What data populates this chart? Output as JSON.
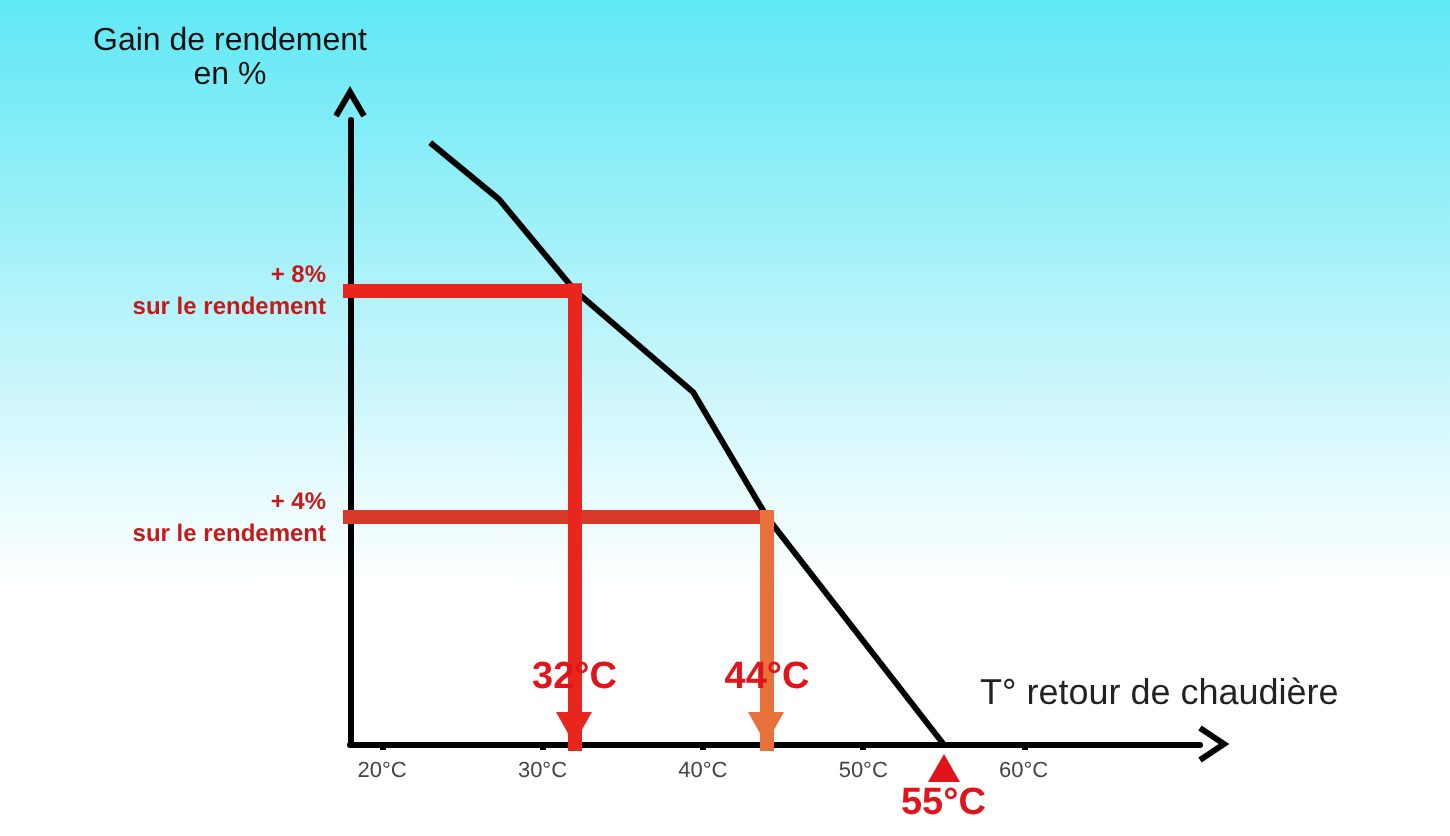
{
  "chart_data": {
    "type": "line",
    "xlabel": "T° retour de chaudière",
    "ylabel": "Gain de rendement\nen %",
    "xlim": [
      18,
      71
    ],
    "ylim": [
      0,
      11
    ],
    "xticks": [
      {
        "value": 20,
        "label": "20°C"
      },
      {
        "value": 30,
        "label": "30°C"
      },
      {
        "value": 40,
        "label": "40°C"
      },
      {
        "value": 50,
        "label": "50°C"
      },
      {
        "value": 60,
        "label": "60°C"
      }
    ],
    "yticks": [
      {
        "value": 4,
        "label": "+ 4%\nsur le rendement"
      },
      {
        "value": 8,
        "label": "+ 8%\nsur le rendement"
      }
    ],
    "series": [
      {
        "color": "#000000",
        "x": [
          23,
          27.3,
          32,
          39.4,
          44,
          55
        ],
        "values": [
          10.6,
          9.6,
          8,
          6.2,
          4,
          0
        ]
      }
    ],
    "ref_lines": [
      {
        "axis": "y",
        "value": 8,
        "color": "#e8261e"
      },
      {
        "axis": "y",
        "value": 4,
        "color": "#d83a2a"
      },
      {
        "axis": "x",
        "value": 32,
        "label": "32°C",
        "color": "#e8261e"
      },
      {
        "axis": "x",
        "value": 44,
        "label": "44°C",
        "color": "#e8703a"
      }
    ],
    "annotations": [
      {
        "text": "55°C",
        "x": 55,
        "y": 0
      }
    ],
    "marker": "none",
    "line_style": "solid",
    "grid": false
  }
}
